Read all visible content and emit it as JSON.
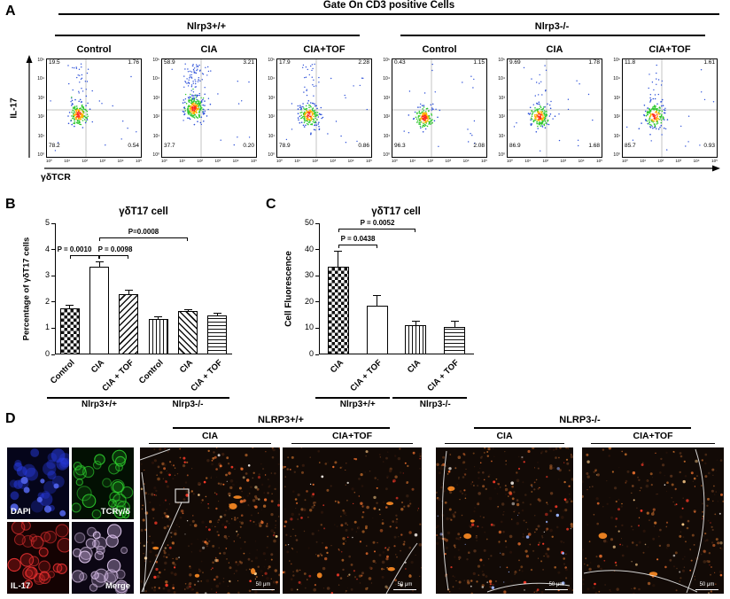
{
  "panelA": {
    "label": "A",
    "title": "Gate On CD3 positive Cells",
    "y_axis": "IL-17",
    "x_axis": "γδTCR",
    "tick_labels": [
      "10⁵",
      "10⁴",
      "10³",
      "10²",
      "10¹",
      "10⁰"
    ],
    "groups": [
      {
        "name": "Nlrp3+/+",
        "plots": [
          {
            "condition": "Control",
            "ul": "19.5",
            "ur": "1.76",
            "ll": "78.2",
            "lr": "0.54"
          },
          {
            "condition": "CIA",
            "ul": "58.9",
            "ur": "3.21",
            "ll": "37.7",
            "lr": "0.20"
          },
          {
            "condition": "CIA+TOF",
            "ul": "17.9",
            "ur": "2.28",
            "ll": "78.9",
            "lr": "0.86"
          }
        ]
      },
      {
        "name": "Nlrp3-/-",
        "plots": [
          {
            "condition": "Control",
            "ul": "0.43",
            "ur": "1.15",
            "ll": "96.3",
            "lr": "2.08"
          },
          {
            "condition": "CIA",
            "ul": "9.69",
            "ur": "1.78",
            "ll": "86.9",
            "lr": "1.68"
          },
          {
            "condition": "CIA+TOF",
            "ul": "11.8",
            "ur": "1.61",
            "ll": "85.7",
            "lr": "0.93"
          }
        ]
      }
    ]
  },
  "panelB": {
    "label": "B"
  },
  "panelC": {
    "label": "C"
  },
  "chart_data": [
    {
      "type": "bar",
      "title": "γδT17 cell",
      "ylabel": "Percentage of γδT17 cells",
      "xlabel": "",
      "ylim": [
        0,
        5
      ],
      "yticks": [
        0,
        1,
        2,
        3,
        4,
        5
      ],
      "categories": [
        "Control",
        "CIA",
        "CIA + TOF",
        "Control",
        "CIA",
        "CIA + TOF"
      ],
      "values": [
        1.75,
        3.35,
        2.3,
        1.35,
        1.65,
        1.5
      ],
      "errors": [
        0.15,
        0.2,
        0.15,
        0.1,
        0.07,
        0.08
      ],
      "group_labels": [
        "Nlrp3+/+",
        "Nlrp3-/-"
      ],
      "annotations": [
        "P = 0.0010",
        "P = 0.0098",
        "P=0.0008"
      ]
    },
    {
      "type": "bar",
      "title": "γδT17 cell",
      "ylabel": "Cell Fluorescence",
      "xlabel": "",
      "ylim": [
        0,
        50
      ],
      "yticks": [
        0,
        10,
        20,
        30,
        40,
        50
      ],
      "categories": [
        "CIA",
        "CIA + TOF",
        "CIA",
        "CIA + TOF"
      ],
      "values": [
        33.5,
        18.5,
        11,
        10.5
      ],
      "errors": [
        6,
        4,
        2,
        2.5
      ],
      "group_labels": [
        "Nlrp3+/+",
        "Nlrp3-/-"
      ],
      "annotations": [
        "P = 0.0438",
        "P = 0.0052"
      ]
    }
  ],
  "panelD": {
    "label": "D",
    "thumbnails": [
      {
        "label": "DAPI",
        "color": "#2836e6"
      },
      {
        "label": "TCRγ/δ",
        "color": "#2fd32f"
      },
      {
        "label": "IL-17",
        "color": "#e23030"
      },
      {
        "label": "Merge",
        "color": "#dcc4ea"
      }
    ],
    "groups": [
      {
        "name": "NLRP3+/+",
        "conditions": [
          "CIA",
          "CIA+TOF"
        ]
      },
      {
        "name": "NLRP3-/-",
        "conditions": [
          "CIA",
          "CIA+TOF"
        ]
      }
    ],
    "scale_bar": "50 μm"
  }
}
